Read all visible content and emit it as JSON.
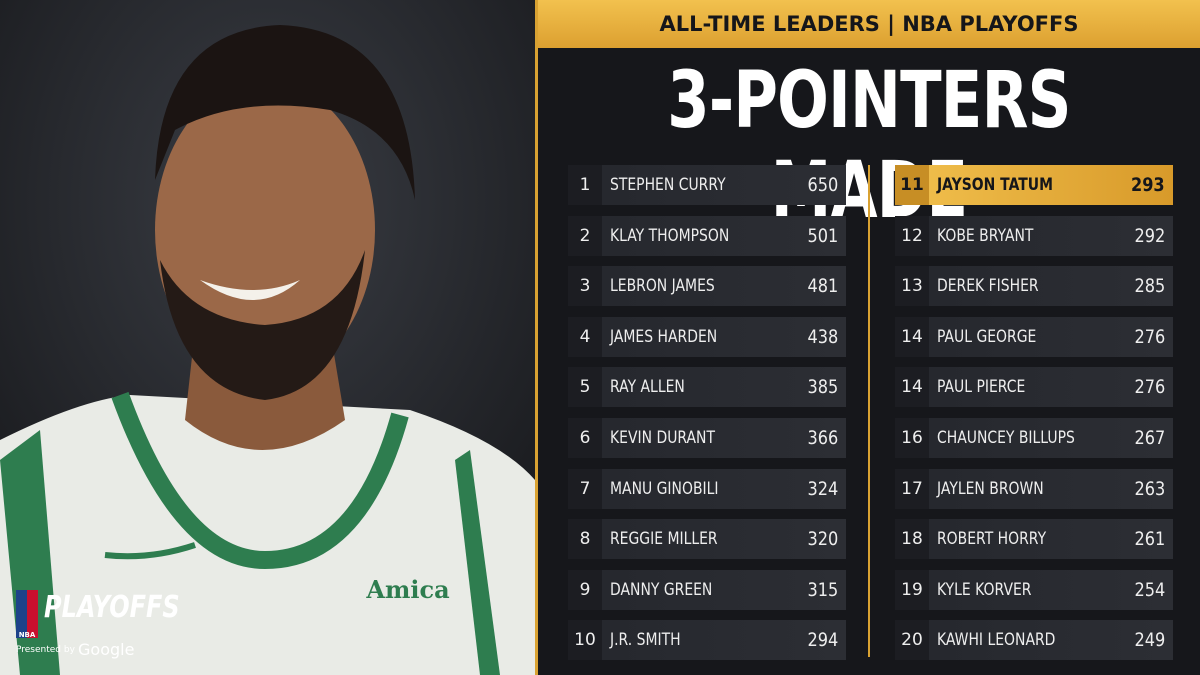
{
  "header": {
    "banner": "ALL-TIME LEADERS | NBA PLAYOFFS",
    "title": "3-POINTERS MADE"
  },
  "logo": {
    "nba": "NBA",
    "label": "PLAYOFFS",
    "presented": "Presented by",
    "sponsor": "Google"
  },
  "photo": {
    "patch": "Amica"
  },
  "table": {
    "rows": [
      [
        1,
        "STEPHEN CURRY",
        650
      ],
      [
        2,
        "KLAY THOMPSON",
        501
      ],
      [
        3,
        "LEBRON JAMES",
        481
      ],
      [
        4,
        "JAMES HARDEN",
        438
      ],
      [
        5,
        "RAY ALLEN",
        385
      ],
      [
        6,
        "KEVIN DURANT",
        366
      ],
      [
        7,
        "MANU GINOBILI",
        324
      ],
      [
        8,
        "REGGIE MILLER",
        320
      ],
      [
        9,
        "DANNY GREEN",
        315
      ],
      [
        10,
        "J.R. SMITH",
        294
      ],
      [
        11,
        "JAYSON TATUM",
        293
      ],
      [
        12,
        "KOBE BRYANT",
        292
      ],
      [
        13,
        "DEREK FISHER",
        285
      ],
      [
        14,
        "PAUL GEORGE",
        276
      ],
      [
        14,
        "PAUL PIERCE",
        276
      ],
      [
        16,
        "CHAUNCEY BILLUPS",
        267
      ],
      [
        17,
        "JAYLEN BROWN",
        263
      ],
      [
        18,
        "ROBERT HORRY",
        261
      ],
      [
        19,
        "KYLE KORVER",
        254
      ],
      [
        20,
        "KAWHI LEONARD",
        249
      ]
    ]
  }
}
